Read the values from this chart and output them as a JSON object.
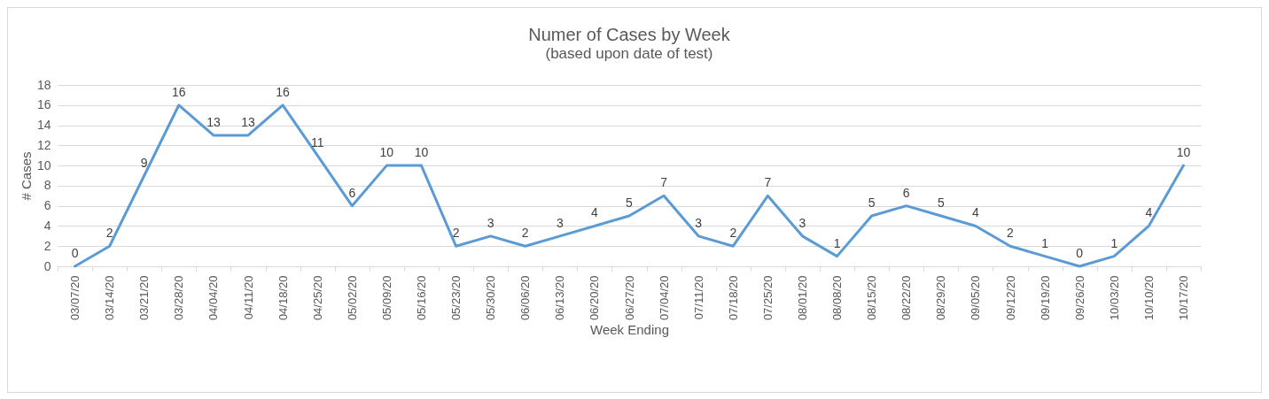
{
  "chart_data": {
    "type": "line",
    "title": "Numer of Cases by Week",
    "subtitle": "(based upon date of test)",
    "xlabel": "Week Ending",
    "ylabel": "# Cases",
    "categories": [
      "03/07/20",
      "03/14/20",
      "03/21/20",
      "03/28/20",
      "04/04/20",
      "04/11/20",
      "04/18/20",
      "04/25/20",
      "05/02/20",
      "05/09/20",
      "05/16/20",
      "05/23/20",
      "05/30/20",
      "06/06/20",
      "06/13/20",
      "06/20/20",
      "06/27/20",
      "07/04/20",
      "07/11/20",
      "07/18/20",
      "07/25/20",
      "08/01/20",
      "08/08/20",
      "08/15/20",
      "08/22/20",
      "08/29/20",
      "09/05/20",
      "09/12/20",
      "09/19/20",
      "09/26/20",
      "10/03/20",
      "10/10/20",
      "10/17/20"
    ],
    "series": [
      {
        "color": "#5b9bd5",
        "values": [
          0,
          2,
          9,
          16,
          13,
          13,
          16,
          11,
          6,
          10,
          10,
          2,
          3,
          2,
          3,
          4,
          5,
          7,
          3,
          2,
          7,
          3,
          1,
          5,
          6,
          5,
          4,
          2,
          1,
          0,
          1,
          4,
          10
        ]
      }
    ],
    "ylim": [
      0,
      18
    ],
    "yticks": [
      0,
      2,
      4,
      6,
      8,
      10,
      12,
      14,
      16,
      18
    ],
    "grid": "y",
    "data_labels": true,
    "legend": false,
    "marker": "none",
    "line_style": "solid"
  }
}
